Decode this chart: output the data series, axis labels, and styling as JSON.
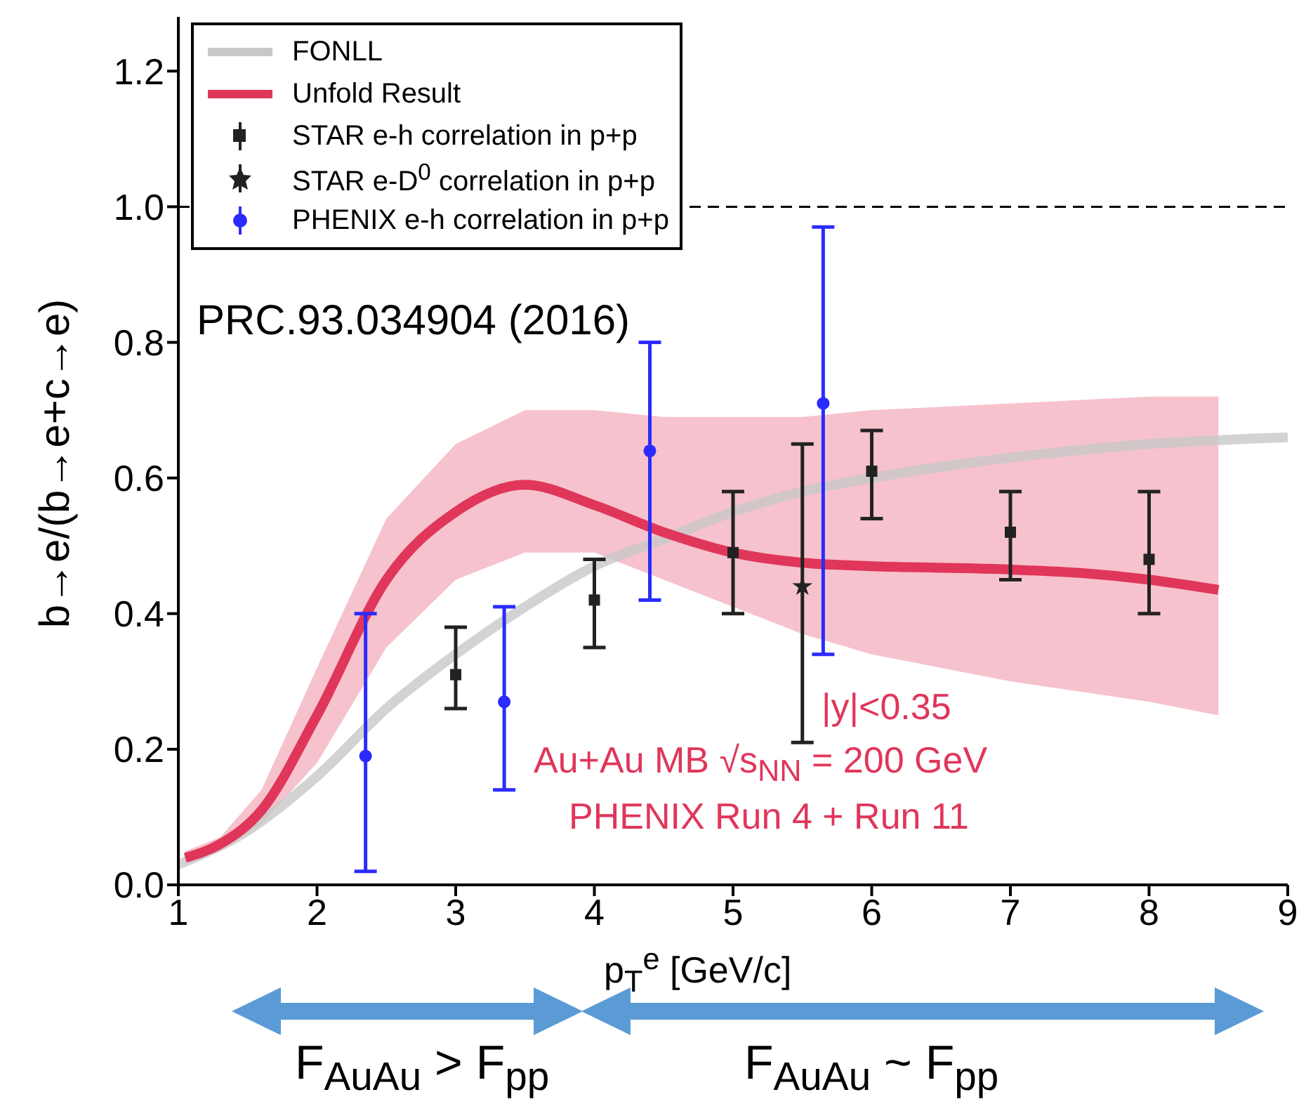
{
  "chart_data": {
    "type": "scatter",
    "xlabel": "p$_{T}$$^{e}$ [GeV/c]",
    "ylabel": "b→e/(b→e+c→e)",
    "xlim": [
      1,
      9
    ],
    "xticks": [
      1,
      2,
      3,
      4,
      5,
      6,
      7,
      8,
      9
    ],
    "ylim": [
      0,
      1.28
    ],
    "yticks": [
      {
        "value": 0,
        "label": "0.0"
      },
      0.2,
      0.4,
      0.6,
      0.8,
      {
        "value": 1,
        "label": "1.0"
      },
      1.2
    ],
    "legend": "top left",
    "grid": false,
    "ref_lines": [
      {
        "axis": "y",
        "value": 1,
        "color": "#000000",
        "line_style": "dashed"
      }
    ],
    "annotations": [
      "PRC.93.034904 (2016)",
      "|y|<0.35",
      "Au+Au MB √s$_{NN}$ = 200 GeV",
      "PHENIX Run 4 + Run 11",
      "F$_{AuAu}$ > F$_{pp}$",
      "F$_{AuAu}$ ~ F$_{pp}$"
    ],
    "series": [
      {
        "name": "FONLL",
        "type": "line",
        "color": "#c8c8c8",
        "x": [
          1,
          1.5,
          2,
          2.5,
          3,
          3.5,
          4,
          4.5,
          5,
          5.5,
          6,
          7,
          8,
          9
        ],
        "values": [
          0.03,
          0.08,
          0.16,
          0.26,
          0.34,
          0.41,
          0.47,
          0.51,
          0.55,
          0.58,
          0.6,
          0.63,
          0.65,
          0.66
        ]
      },
      {
        "name": "Unfold Result",
        "type": "line",
        "color": "#e0365a",
        "x": [
          1.05,
          1.3,
          1.6,
          2,
          2.5,
          3,
          3.5,
          4,
          4.5,
          5,
          5.5,
          6,
          7,
          7.5,
          8,
          8.5
        ],
        "values": [
          0.04,
          0.06,
          0.11,
          0.25,
          0.45,
          0.55,
          0.59,
          0.56,
          0.52,
          0.49,
          0.475,
          0.47,
          0.465,
          0.46,
          0.45,
          0.435
        ],
        "lower": [
          0.03,
          0.05,
          0.09,
          0.18,
          0.35,
          0.45,
          0.49,
          0.49,
          0.45,
          0.41,
          0.37,
          0.34,
          0.3,
          0.285,
          0.27,
          0.25
        ],
        "upper": [
          0.05,
          0.07,
          0.14,
          0.32,
          0.54,
          0.65,
          0.7,
          0.7,
          0.69,
          0.69,
          0.69,
          0.7,
          0.71,
          0.715,
          0.72,
          0.72
        ]
      },
      {
        "name": "STAR e-h correlation in p+p",
        "marker": "square",
        "color": "#222222",
        "x": [
          3,
          4,
          5,
          6,
          7,
          8
        ],
        "values": [
          0.31,
          0.42,
          0.49,
          0.61,
          0.52,
          0.48
        ],
        "errors": [
          [
            0.26,
            0.38
          ],
          [
            0.35,
            0.48
          ],
          [
            0.4,
            0.58
          ],
          [
            0.54,
            0.67
          ],
          [
            0.45,
            0.58
          ],
          [
            0.4,
            0.58
          ]
        ]
      },
      {
        "name": "STAR e-D$^{0}$  correlation in p+p",
        "marker": "star",
        "color": "#222222",
        "x": [
          5.5
        ],
        "values": [
          0.44
        ],
        "errors": [
          [
            0.21,
            0.65
          ]
        ]
      },
      {
        "name": "PHENIX e-h correlation in p+p",
        "marker": "circle",
        "color": "#2b2bff",
        "x": [
          2.35,
          3.35,
          4.4,
          5.65
        ],
        "values": [
          0.19,
          0.27,
          0.64,
          0.71
        ],
        "errors": [
          [
            0.02,
            0.4
          ],
          [
            0.14,
            0.41
          ],
          [
            0.42,
            0.8
          ],
          [
            0.34,
            0.97
          ]
        ]
      }
    ]
  }
}
